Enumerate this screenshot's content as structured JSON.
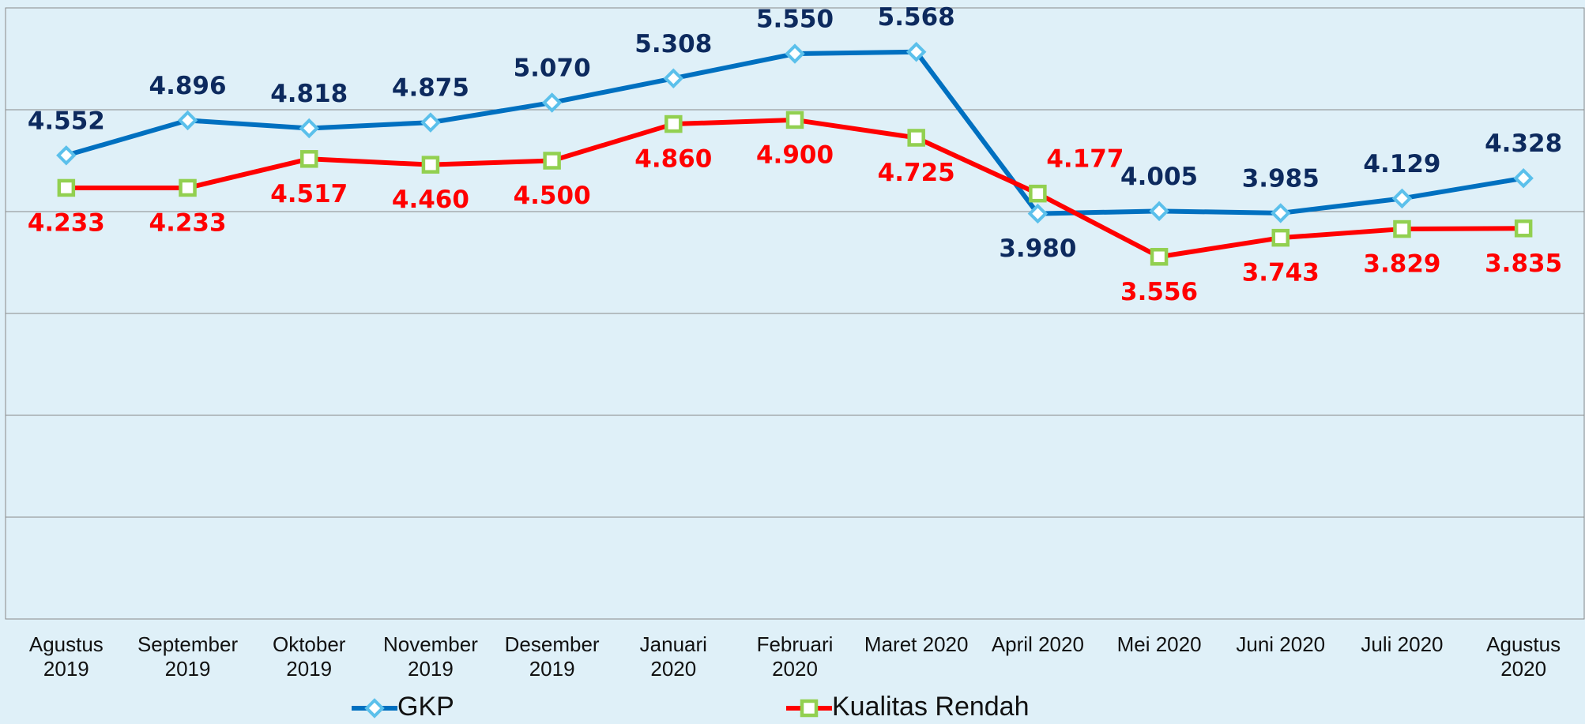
{
  "chart_data": {
    "type": "line",
    "categories": [
      "Agustus 2019",
      "September 2019",
      "Oktober 2019",
      "November 2019",
      "Desember 2019",
      "Januari 2020",
      "Februari 2020",
      "Maret 2020",
      "April 2020",
      "Mei 2020",
      "Juni 2020",
      "Juli 2020",
      "Agustus 2020"
    ],
    "series": [
      {
        "name": "GKP",
        "color": "#0070c0",
        "marker_color": "#5bc0eb",
        "label_color": "#0d2a5e",
        "values": [
          4552,
          4896,
          4818,
          4875,
          5070,
          5308,
          5550,
          5568,
          3980,
          4005,
          3985,
          4129,
          4328
        ],
        "value_labels": [
          "4.552",
          "4.896",
          "4.818",
          "4.875",
          "5.070",
          "5.308",
          "5.550",
          "5.568",
          "3.980",
          "4.005",
          "3.985",
          "4.129",
          "4.328"
        ]
      },
      {
        "name": "Kualitas Rendah",
        "color": "#ff0000",
        "marker_color": "#92d050",
        "label_color": "#ff0000",
        "values": [
          4233,
          4233,
          4517,
          4460,
          4500,
          4860,
          4900,
          4725,
          4177,
          3556,
          3743,
          3829,
          3835
        ],
        "value_labels": [
          "4.233",
          "4.233",
          "4.517",
          "4.460",
          "4.500",
          "4.860",
          "4.900",
          "4.725",
          "4.177",
          "3.556",
          "3.743",
          "3.829",
          "3.835"
        ]
      }
    ],
    "ylim": [
      0,
      6000
    ],
    "yticks": [
      0,
      1000,
      2000,
      3000,
      4000,
      5000,
      6000
    ],
    "grid": true,
    "legend": "bottom"
  }
}
